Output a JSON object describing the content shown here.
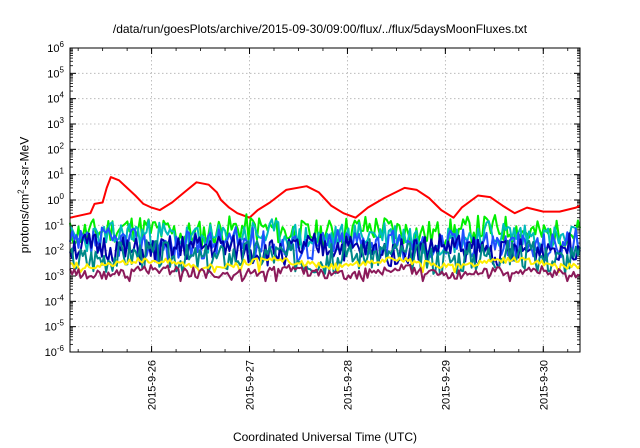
{
  "chart_data": {
    "type": "line",
    "title": "/data/run/goesPlots/archive/2015-09-30/09:00/flux/../flux/5daysMoonFluxes.txt",
    "xlabel": "Coordinated Universal Time (UTC)",
    "ylabel": "protons/cm2-s-sr-MeV",
    "xlim": [
      "2015-09-25 04:00",
      "2015-09-30 09:00"
    ],
    "ylim": [
      1e-06,
      1000000.0
    ],
    "y_scale": "log",
    "grid": true,
    "x_ticks": [
      "2015-9-26",
      "2015-9-27",
      "2015-9-28",
      "2015-9-29",
      "2015-9-30"
    ],
    "y_ticks": [
      "10^-6",
      "10^-5",
      "10^-4",
      "10^-3",
      "10^-2",
      "10^-1",
      "10^0",
      "10^1",
      "10^2",
      "10^3",
      "10^4",
      "10^5",
      "10^6"
    ],
    "series": [
      {
        "color": "#ff0000",
        "x": [
          "2015-09-25 04:00",
          "2015-09-25 09:00",
          "2015-09-25 10:00",
          "2015-09-25 12:00",
          "2015-09-25 13:00",
          "2015-09-25 14:00",
          "2015-09-25 16:00",
          "2015-09-25 18:00",
          "2015-09-25 20:00",
          "2015-09-25 22:00",
          "2015-09-26 00:00",
          "2015-09-26 02:00",
          "2015-09-26 05:00",
          "2015-09-26 08:00",
          "2015-09-26 11:00",
          "2015-09-26 14:00",
          "2015-09-26 16:00",
          "2015-09-26 17:00",
          "2015-09-26 19:00",
          "2015-09-26 21:00",
          "2015-09-27 00:00",
          "2015-09-27 02:00",
          "2015-09-27 05:00",
          "2015-09-27 09:00",
          "2015-09-27 14:00",
          "2015-09-27 17:00",
          "2015-09-27 20:00",
          "2015-09-27 23:00",
          "2015-09-28 02:00",
          "2015-09-28 05:00",
          "2015-09-28 09:00",
          "2015-09-28 14:00",
          "2015-09-28 17:00",
          "2015-09-28 20:00",
          "2015-09-28 23:00",
          "2015-09-29 02:00",
          "2015-09-29 04:00",
          "2015-09-29 08:00",
          "2015-09-29 11:00",
          "2015-09-29 14:00",
          "2015-09-29 17:00",
          "2015-09-29 20:00",
          "2015-09-30 00:00",
          "2015-09-30 04:00",
          "2015-09-30 08:00",
          "2015-09-30 09:00"
        ],
        "y": [
          0.2,
          0.3,
          0.7,
          0.8,
          3,
          8,
          6,
          3,
          1.5,
          0.7,
          0.5,
          0.4,
          0.8,
          2,
          5,
          4,
          2,
          1,
          0.5,
          0.3,
          0.2,
          0.4,
          0.8,
          2.5,
          3.5,
          2,
          0.6,
          0.3,
          0.2,
          0.5,
          1.2,
          3,
          2.5,
          1.2,
          0.4,
          0.2,
          0.5,
          1.5,
          1.3,
          0.6,
          0.3,
          0.5,
          0.35,
          0.35,
          0.5,
          0.6
        ]
      },
      {
        "color": "#00ee00",
        "base": 0.06,
        "amp": 0.55,
        "seed": 11
      },
      {
        "color": "#00bbbb",
        "base": 0.035,
        "amp": 0.6,
        "seed": 23
      },
      {
        "color": "#2050ff",
        "base": 0.018,
        "amp": 0.6,
        "seed": 37
      },
      {
        "color": "#0000aa",
        "base": 0.011,
        "amp": 0.55,
        "seed": 51
      },
      {
        "color": "#008888",
        "base": 0.006,
        "amp": 0.6,
        "seed": 67
      },
      {
        "color": "#ffee00",
        "base": 0.0032,
        "amp": 0.12,
        "seed": 79
      },
      {
        "color": "#8b1a5a",
        "base": 0.0014,
        "amp": 0.2,
        "seed": 91
      }
    ]
  }
}
